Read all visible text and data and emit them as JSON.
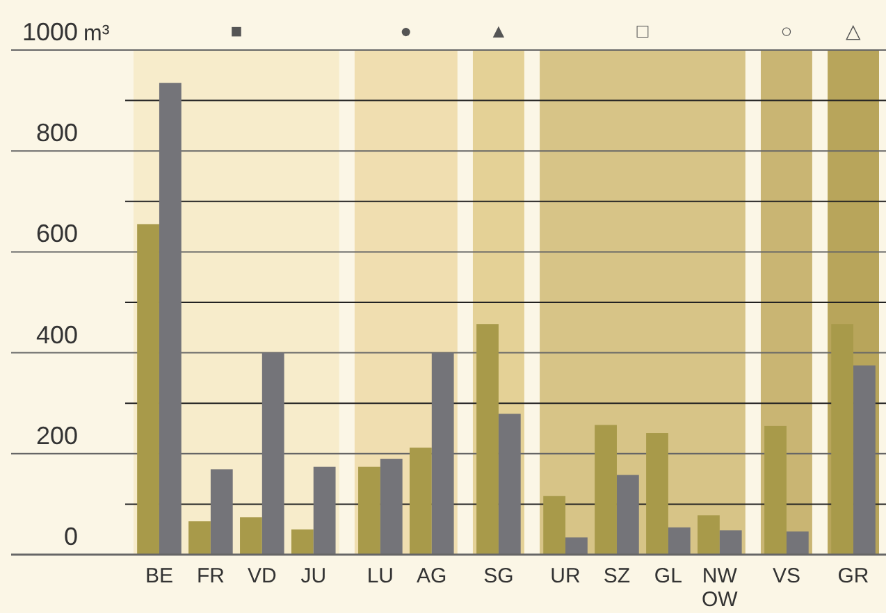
{
  "chart_data": {
    "type": "bar",
    "categories": [
      "BE",
      "FR",
      "VD",
      "JU",
      "LU",
      "AG",
      "SG",
      "UR",
      "SZ",
      "GL",
      "NW OW",
      "VS",
      "GR"
    ],
    "series": [
      {
        "color": "#a89a4a",
        "values": [
          655,
          66,
          74,
          50,
          174,
          212,
          457,
          116,
          257,
          241,
          78,
          255,
          457
        ]
      },
      {
        "color": "#747479",
        "values": [
          935,
          169,
          400,
          174,
          190,
          400,
          279,
          34,
          158,
          54,
          48,
          46,
          375
        ]
      }
    ],
    "ylim": [
      0,
      1000
    ],
    "yticks": [
      0,
      {
        "value": 100,
        "label": null
      },
      200,
      {
        "value": 300,
        "label": null
      },
      400,
      {
        "value": 500,
        "label": null
      },
      600,
      {
        "value": 700,
        "label": null
      },
      800,
      {
        "value": 900,
        "label": null
      },
      1000
    ],
    "ylabel": "m³",
    "grid": "y",
    "bands": [
      {
        "axis": "x",
        "from": "BE",
        "to": "JU",
        "label": "■",
        "color": "#f7eccb"
      },
      {
        "axis": "x",
        "from": "LU",
        "to": "AG",
        "label": "●",
        "color": "#f0deb0"
      },
      {
        "axis": "x",
        "from": "SG",
        "to": "SG",
        "label": "▲",
        "color": "#e4d196"
      },
      {
        "axis": "x",
        "from": "UR",
        "to": "NW OW",
        "label": "□",
        "color": "#d7c487"
      },
      {
        "axis": "x",
        "from": "VS",
        "to": "VS",
        "label": "○",
        "color": "#c9b573"
      },
      {
        "axis": "x",
        "from": "GR",
        "to": "GR",
        "label": "△",
        "color": "#b8a55b"
      }
    ]
  }
}
